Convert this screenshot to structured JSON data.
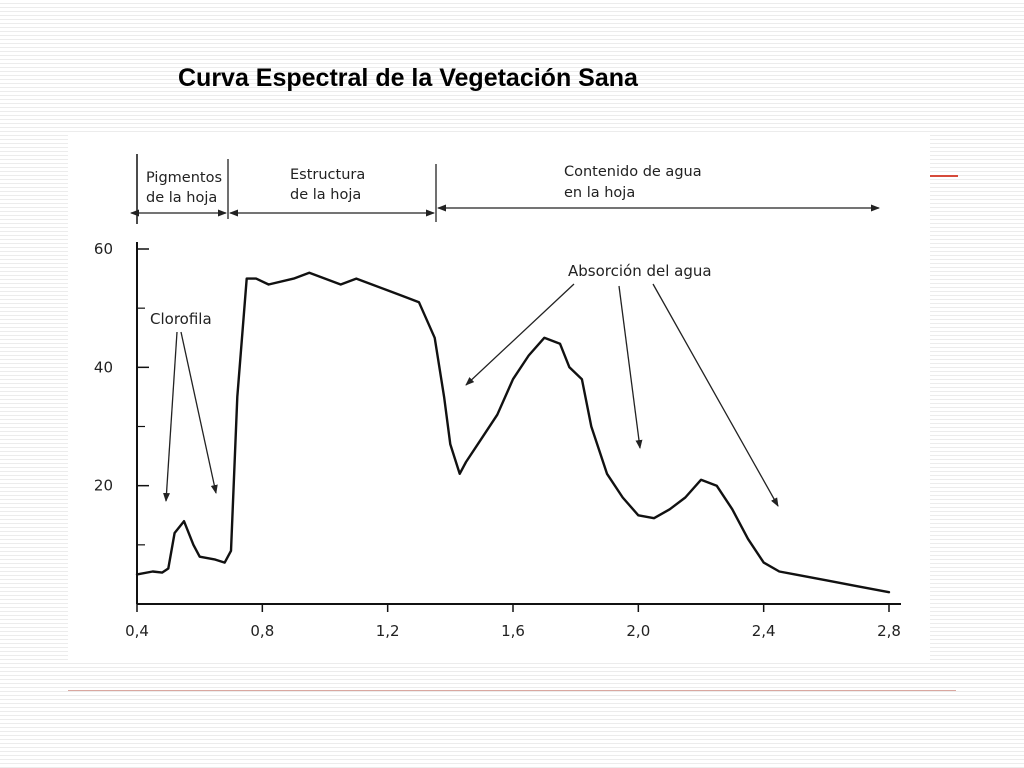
{
  "slide": {
    "title": "Curva Espectral de la Vegetación Sana",
    "accent_color": "#c0504d"
  },
  "chart_data": {
    "type": "line",
    "title": "",
    "xlabel": "",
    "ylabel": "",
    "xlim": [
      0.4,
      2.8
    ],
    "ylim": [
      0,
      60
    ],
    "x_ticks": [
      "0,4",
      "0,8",
      "1,2",
      "1,6",
      "2,0",
      "2,4",
      "2,8"
    ],
    "x_tick_values": [
      0.4,
      0.8,
      1.2,
      1.6,
      2.0,
      2.4,
      2.8
    ],
    "y_ticks": [
      "20",
      "40",
      "60"
    ],
    "y_tick_values": [
      20,
      40,
      60
    ],
    "grid": false,
    "line_color": "#111111",
    "series": [
      {
        "x": [
          0.4,
          0.45,
          0.48,
          0.5,
          0.52,
          0.55,
          0.58,
          0.6,
          0.65,
          0.68,
          0.7,
          0.72,
          0.75,
          0.78,
          0.82,
          0.9,
          0.95,
          1.0,
          1.05,
          1.1,
          1.15,
          1.2,
          1.25,
          1.3,
          1.35,
          1.38,
          1.4,
          1.43,
          1.45,
          1.5,
          1.55,
          1.6,
          1.65,
          1.7,
          1.75,
          1.78,
          1.82,
          1.85,
          1.9,
          1.95,
          2.0,
          2.05,
          2.1,
          2.15,
          2.2,
          2.25,
          2.3,
          2.35,
          2.4,
          2.45,
          2.5,
          2.6,
          2.7,
          2.8
        ],
        "y": [
          5,
          5.5,
          5.3,
          6,
          12,
          14,
          10,
          8,
          7.5,
          7,
          9,
          35,
          55,
          55,
          54,
          55,
          56,
          55,
          54,
          55,
          54,
          53,
          52,
          51,
          45,
          35,
          27,
          22,
          24,
          28,
          32,
          38,
          42,
          45,
          44,
          40,
          38,
          30,
          22,
          18,
          15,
          14.5,
          16,
          18,
          21,
          20,
          16,
          11,
          7,
          5.5,
          5,
          4,
          3,
          2
        ]
      }
    ],
    "regions": [
      "Pigmentos de la hoja",
      "Estructura de la hoja",
      "Contenido de agua en la hoja"
    ],
    "annotations": [
      "Clorofila",
      "Absorción del agua"
    ]
  }
}
